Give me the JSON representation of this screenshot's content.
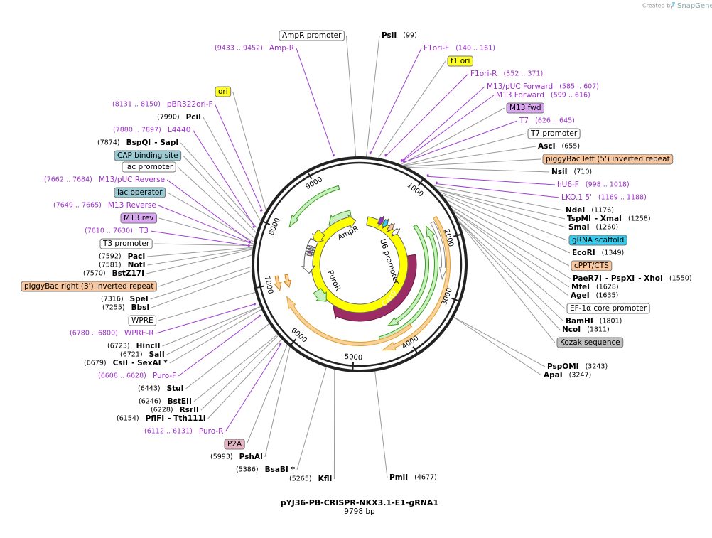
{
  "header": {
    "credit": "Created by",
    "brand": "SnapGene"
  },
  "title": "pYJ36-PB-CRISPR-NKX3.1-E1-gRNA1",
  "length": "9798 bp",
  "total_bp": 9798,
  "ring_ticks": [
    1000,
    2000,
    3000,
    4000,
    5000,
    6000,
    7000,
    8000,
    9000
  ],
  "inner_features": [
    "AmpR",
    "U6 promoter",
    "Cas9",
    "PuroR"
  ],
  "labels": [
    {
      "parts": [
        "AmpR promoter"
      ],
      "kind": "feature",
      "fill": "#ffffff"
    },
    {
      "parts": [
        "PsiI"
      ],
      "pos": "(99)",
      "kind": "enzyme"
    },
    {
      "parts": [
        "Amp-R"
      ],
      "pos": "(9433 .. 9452)",
      "kind": "primer"
    },
    {
      "parts": [
        "F1ori-F"
      ],
      "pos": "(140 .. 161)",
      "kind": "primer"
    },
    {
      "parts": [
        "f1 ori"
      ],
      "kind": "feature",
      "fill": "#ffff22"
    },
    {
      "parts": [
        "F1ori-R"
      ],
      "pos": "(352 .. 371)",
      "kind": "primer"
    },
    {
      "parts": [
        "M13/pUC Forward"
      ],
      "pos": "(585 .. 607)",
      "kind": "primer"
    },
    {
      "parts": [
        "M13 Forward"
      ],
      "pos": "(599 .. 616)",
      "kind": "primer"
    },
    {
      "parts": [
        "M13 fwd"
      ],
      "kind": "feature",
      "fill": "#d9a6f2"
    },
    {
      "parts": [
        "T7"
      ],
      "pos": "(626 .. 645)",
      "kind": "primer"
    },
    {
      "parts": [
        "T7 promoter"
      ],
      "kind": "feature",
      "fill": "#ffffff"
    },
    {
      "parts": [
        "AscI"
      ],
      "pos": "(655)",
      "kind": "enzyme"
    },
    {
      "parts": [
        "piggyBac left (5') inverted repeat"
      ],
      "kind": "feature",
      "fill": "#f9c79f"
    },
    {
      "parts": [
        "NsiI"
      ],
      "pos": "(710)",
      "kind": "enzyme"
    },
    {
      "parts": [
        "hU6-F"
      ],
      "pos": "(998 .. 1018)",
      "kind": "primer"
    },
    {
      "parts": [
        "LKO.1 5'"
      ],
      "pos": "(1169 .. 1188)",
      "kind": "primer"
    },
    {
      "parts": [
        "NdeI"
      ],
      "pos": "(1176)",
      "kind": "enzyme"
    },
    {
      "parts": [
        "TspMI",
        "- XmaI"
      ],
      "pos": "(1258)",
      "kind": "enzyme"
    },
    {
      "parts": [
        "SmaI"
      ],
      "pos": "(1260)",
      "kind": "enzyme"
    },
    {
      "parts": [
        "gRNA scaffold"
      ],
      "kind": "feature",
      "fill": "#33ccee"
    },
    {
      "parts": [
        "EcoRI"
      ],
      "pos": "(1349)",
      "kind": "enzyme"
    },
    {
      "parts": [
        "cPPT/CTS"
      ],
      "kind": "feature",
      "fill": "#f9c79f"
    },
    {
      "parts": [
        "PaeR7I",
        "- PspXI",
        "- XhoI"
      ],
      "pos": "(1550)",
      "kind": "enzyme"
    },
    {
      "parts": [
        "MfeI"
      ],
      "pos": "(1628)",
      "kind": "enzyme"
    },
    {
      "parts": [
        "AgeI"
      ],
      "pos": "(1635)",
      "kind": "enzyme"
    },
    {
      "parts": [
        "EF-1α core promoter"
      ],
      "kind": "feature",
      "fill": "#ffffff"
    },
    {
      "parts": [
        "BamHI"
      ],
      "pos": "(1801)",
      "kind": "enzyme"
    },
    {
      "parts": [
        "NcoI"
      ],
      "pos": "(1811)",
      "kind": "enzyme"
    },
    {
      "parts": [
        "Kozak sequence"
      ],
      "kind": "feature",
      "fill": "#c0c0c0"
    },
    {
      "parts": [
        "PspOMI"
      ],
      "pos": "(3243)",
      "kind": "enzyme"
    },
    {
      "parts": [
        "ApaI"
      ],
      "pos": "(3247)",
      "kind": "enzyme"
    },
    {
      "parts": [
        "PmlI"
      ],
      "pos": "(4677)",
      "kind": "enzyme"
    },
    {
      "parts": [
        "KflI"
      ],
      "pos": "(5265)",
      "kind": "enzyme"
    },
    {
      "parts": [
        "BsaBI *"
      ],
      "pos": "(5386)",
      "kind": "enzyme"
    },
    {
      "parts": [
        "PshAI"
      ],
      "pos": "(5993)",
      "kind": "enzyme"
    },
    {
      "parts": [
        "P2A"
      ],
      "kind": "feature",
      "fill": "#e5b3c3"
    },
    {
      "parts": [
        "Puro-R"
      ],
      "pos": "(6112 .. 6131)",
      "kind": "primer"
    },
    {
      "parts": [
        "PflFI",
        "- Tth111I"
      ],
      "pos": "(6154)",
      "kind": "enzyme"
    },
    {
      "parts": [
        "RsrII"
      ],
      "pos": "(6228)",
      "kind": "enzyme"
    },
    {
      "parts": [
        "BstEII"
      ],
      "pos": "(6246)",
      "kind": "enzyme"
    },
    {
      "parts": [
        "StuI"
      ],
      "pos": "(6443)",
      "kind": "enzyme"
    },
    {
      "parts": [
        "Puro-F"
      ],
      "pos": "(6608 .. 6628)",
      "kind": "primer"
    },
    {
      "parts": [
        "CsiI",
        "- SexAI *"
      ],
      "pos": "(6679)",
      "kind": "enzyme"
    },
    {
      "parts": [
        "SalI"
      ],
      "pos": "(6721)",
      "kind": "enzyme"
    },
    {
      "parts": [
        "HincII"
      ],
      "pos": "(6723)",
      "kind": "enzyme"
    },
    {
      "parts": [
        "WPRE-R"
      ],
      "pos": "(6780 .. 6800)",
      "kind": "primer"
    },
    {
      "parts": [
        "WPRE"
      ],
      "kind": "feature",
      "fill": "#ffffff"
    },
    {
      "parts": [
        "BbsI"
      ],
      "pos": "(7255)",
      "kind": "enzyme"
    },
    {
      "parts": [
        "SpeI"
      ],
      "pos": "(7316)",
      "kind": "enzyme"
    },
    {
      "parts": [
        "piggyBac right (3') inverted repeat"
      ],
      "kind": "feature",
      "fill": "#f9c79f"
    },
    {
      "parts": [
        "BstZ17I"
      ],
      "pos": "(7570)",
      "kind": "enzyme"
    },
    {
      "parts": [
        "NotI"
      ],
      "pos": "(7581)",
      "kind": "enzyme"
    },
    {
      "parts": [
        "PacI"
      ],
      "pos": "(7592)",
      "kind": "enzyme"
    },
    {
      "parts": [
        "T3 promoter"
      ],
      "kind": "feature",
      "fill": "#ffffff"
    },
    {
      "parts": [
        "T3"
      ],
      "pos": "(7610 .. 7630)",
      "kind": "primer"
    },
    {
      "parts": [
        "M13 rev"
      ],
      "kind": "feature",
      "fill": "#d9a6f2"
    },
    {
      "parts": [
        "M13 Reverse"
      ],
      "pos": "(7649 .. 7665)",
      "kind": "primer"
    },
    {
      "parts": [
        "lac operator"
      ],
      "kind": "feature",
      "fill": "#99c9d2"
    },
    {
      "parts": [
        "M13/pUC Reverse"
      ],
      "pos": "(7662 .. 7684)",
      "kind": "primer"
    },
    {
      "parts": [
        "lac promoter"
      ],
      "kind": "feature",
      "fill": "#ffffff"
    },
    {
      "parts": [
        "CAP binding site"
      ],
      "kind": "feature",
      "fill": "#99c9d2"
    },
    {
      "parts": [
        "BspQI",
        "- SapI"
      ],
      "pos": "(7874)",
      "kind": "enzyme"
    },
    {
      "parts": [
        "L4440"
      ],
      "pos": "(7880 .. 7897)",
      "kind": "primer"
    },
    {
      "parts": [
        "PciI"
      ],
      "pos": "(7990)",
      "kind": "enzyme"
    },
    {
      "parts": [
        "pBR322ori-F"
      ],
      "pos": "(8131 .. 8150)",
      "kind": "primer"
    },
    {
      "parts": [
        "ori"
      ],
      "kind": "feature",
      "fill": "#ffff22"
    }
  ]
}
